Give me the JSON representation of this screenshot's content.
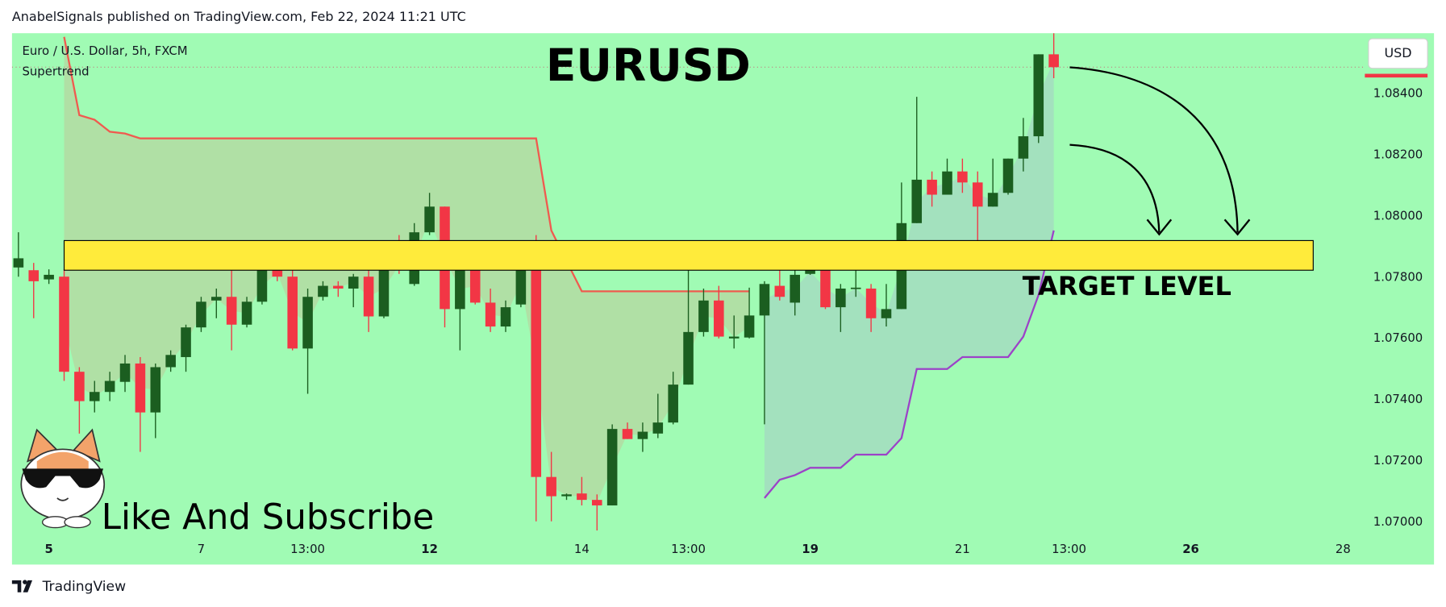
{
  "header": "AnabelSignals published on TradingView.com, Feb 22, 2024 11:21 UTC",
  "footer": "TradingView",
  "chart_data": {
    "type": "candlestick",
    "title": "EURUSD",
    "symbol": "Euro / U.S. Dollar, 5h, FXCM",
    "indicator": "Supertrend",
    "currency": "USD",
    "annotations": [
      "TARGET LEVEL",
      "Like And Subscribe"
    ],
    "up_color": "#1b5e20",
    "down_color": "#f23645",
    "open": [
      1.07833,
      1.07824,
      1.07794,
      1.07803,
      1.07492,
      1.07396,
      1.07426,
      1.07459,
      1.07519,
      1.07359,
      1.07507,
      1.0754,
      1.07637,
      1.07725,
      1.07737,
      1.07646,
      1.07721,
      1.07827,
      1.07803,
      1.07568,
      1.07737,
      1.07773,
      1.07764,
      1.07803,
      1.07673,
      1.07854,
      1.07779,
      1.07948,
      1.08032,
      1.07697,
      1.07827,
      1.07718,
      1.0764,
      1.07712,
      1.07854,
      1.07148,
      1.07085,
      1.07094,
      1.07073,
      1.07055,
      1.07305,
      1.07272,
      1.0729,
      1.07326,
      1.0745,
      1.07622,
      1.07725,
      1.07601,
      1.07604,
      1.07676,
      1.07773,
      1.07718,
      1.07812,
      1.07827,
      1.07703,
      1.07764,
      1.07764,
      1.07667,
      1.07697,
      1.07978,
      1.0812,
      1.08071,
      1.08147,
      1.08111,
      1.08032,
      1.08077,
      1.08189,
      1.08262,
      1.0853
    ],
    "high": [
      1.07948,
      1.07848,
      1.07827,
      1.07827,
      1.07507,
      1.07462,
      1.07492,
      1.07547,
      1.0754,
      1.07519,
      1.07562,
      1.07646,
      1.07737,
      1.07764,
      1.07839,
      1.07737,
      1.07833,
      1.07899,
      1.07854,
      1.07764,
      1.07788,
      1.07788,
      1.07812,
      1.07848,
      1.07899,
      1.07939,
      1.07978,
      1.08077,
      1.08032,
      1.07863,
      1.07854,
      1.07764,
      1.07725,
      1.07863,
      1.07939,
      1.0723,
      1.07094,
      1.07148,
      1.07091,
      1.0732,
      1.07326,
      1.07326,
      1.0742,
      1.07492,
      1.07848,
      1.07764,
      1.07773,
      1.07676,
      1.07767,
      1.07788,
      1.07899,
      1.07899,
      1.07899,
      1.07899,
      1.07779,
      1.07833,
      1.07779,
      1.07779,
      1.08111,
      1.08391,
      1.08147,
      1.08189,
      1.08189,
      1.08147,
      1.08189,
      1.08189,
      1.08322,
      1.0853,
      1.08602
    ],
    "low": [
      1.07803,
      1.07667,
      1.07779,
      1.07462,
      1.0729,
      1.07359,
      1.07396,
      1.07426,
      1.0723,
      1.07275,
      1.07492,
      1.07492,
      1.07622,
      1.07667,
      1.07562,
      1.07637,
      1.07712,
      1.07788,
      1.07562,
      1.0742,
      1.07725,
      1.07737,
      1.07703,
      1.07622,
      1.07667,
      1.07812,
      1.07773,
      1.07939,
      1.07637,
      1.07562,
      1.07712,
      1.07622,
      1.07622,
      1.07703,
      1.07003,
      1.07003,
      1.07073,
      1.07055,
      1.06973,
      1.07055,
      1.07272,
      1.0723,
      1.07275,
      1.0732,
      1.0745,
      1.07607,
      1.07601,
      1.07568,
      1.07601,
      1.0732,
      1.07725,
      1.07676,
      1.07809,
      1.07697,
      1.07622,
      1.07737,
      1.07622,
      1.0764,
      1.07697,
      1.07978,
      1.08032,
      1.08071,
      1.08077,
      1.07899,
      1.08032,
      1.08071,
      1.08147,
      1.0824,
      1.08452
    ],
    "close": [
      1.07863,
      1.07788,
      1.07809,
      1.07492,
      1.07396,
      1.07426,
      1.07462,
      1.07519,
      1.07359,
      1.07507,
      1.07547,
      1.07637,
      1.07721,
      1.07737,
      1.07646,
      1.07721,
      1.07827,
      1.07803,
      1.07568,
      1.07737,
      1.07773,
      1.07764,
      1.07803,
      1.07673,
      1.07854,
      1.07827,
      1.07948,
      1.08032,
      1.07697,
      1.07827,
      1.07718,
      1.0764,
      1.07703,
      1.07854,
      1.07148,
      1.07085,
      1.07091,
      1.07073,
      1.07055,
      1.07305,
      1.07272,
      1.07296,
      1.07326,
      1.0745,
      1.07622,
      1.07725,
      1.07607,
      1.07607,
      1.07676,
      1.07779,
      1.07737,
      1.07809,
      1.07827,
      1.07703,
      1.07764,
      1.07767,
      1.07667,
      1.07697,
      1.07978,
      1.0812,
      1.08071,
      1.08147,
      1.08111,
      1.08032,
      1.08077,
      1.08189,
      1.08262,
      1.0853,
      1.08488
    ],
    "supertrend_down": {
      "color": "#f05a4f",
      "fill": "#b3dba2",
      "values": [
        null,
        null,
        null,
        1.08587,
        1.08331,
        1.08316,
        1.08277,
        1.08271,
        1.08255,
        1.08255,
        1.08255,
        1.08255,
        1.08255,
        1.08255,
        1.08255,
        1.08255,
        1.08255,
        1.08255,
        1.08255,
        1.08255,
        1.08255,
        1.08255,
        1.08255,
        1.08255,
        1.08255,
        1.08255,
        1.08255,
        1.08255,
        1.08255,
        1.08255,
        1.08255,
        1.08255,
        1.08255,
        1.08255,
        1.08255,
        1.07954,
        1.07854,
        1.07755,
        1.07755,
        1.07755,
        1.07755,
        1.07755,
        1.07755,
        1.07755,
        1.07755,
        1.07755,
        1.07755,
        1.07755,
        1.07755,
        null,
        null,
        null,
        null,
        null,
        null,
        null,
        null,
        null,
        null,
        null,
        null,
        null,
        null,
        null,
        null,
        null,
        null,
        null,
        null
      ]
    },
    "supertrend_up": {
      "color": "#9c42c8",
      "fill": "#a3dcc0",
      "values": [
        null,
        null,
        null,
        null,
        null,
        null,
        null,
        null,
        null,
        null,
        null,
        null,
        null,
        null,
        null,
        null,
        null,
        null,
        null,
        null,
        null,
        null,
        null,
        null,
        null,
        null,
        null,
        null,
        null,
        null,
        null,
        null,
        null,
        null,
        null,
        null,
        null,
        null,
        null,
        null,
        null,
        null,
        null,
        null,
        null,
        null,
        null,
        null,
        null,
        1.07079,
        1.07139,
        1.07154,
        1.07178,
        1.07178,
        1.07178,
        1.07221,
        1.07221,
        1.07221,
        1.07275,
        1.07501,
        1.07501,
        1.07501,
        1.0754,
        1.0754,
        1.0754,
        1.0754,
        1.07607,
        1.07743,
        1.07954
      ]
    },
    "target_zone": {
      "low": 1.07824,
      "high": 1.07921,
      "color": "#ffeb3b"
    },
    "ylim": [
      1.06943,
      1.08599
    ],
    "yticks": [
      {
        "value": 1.07,
        "label": "1.07000"
      },
      {
        "value": 1.072,
        "label": "1.07200"
      },
      {
        "value": 1.074,
        "label": "1.07400"
      },
      {
        "value": 1.076,
        "label": "1.07600"
      },
      {
        "value": 1.078,
        "label": "1.07800"
      },
      {
        "value": 1.08,
        "label": "1.08000"
      },
      {
        "value": 1.082,
        "label": "1.08200"
      },
      {
        "value": 1.084,
        "label": "1.08400"
      }
    ],
    "xticks": [
      {
        "value": 2,
        "label": "5",
        "bold": true
      },
      {
        "value": 12,
        "label": "7"
      },
      {
        "value": 19,
        "label": "13:00"
      },
      {
        "value": 27,
        "label": "12",
        "bold": true
      },
      {
        "value": 37,
        "label": "14"
      },
      {
        "value": 44,
        "label": "13:00"
      },
      {
        "value": 52,
        "label": "19",
        "bold": true
      },
      {
        "value": 62,
        "label": "21"
      },
      {
        "value": 69,
        "label": "13:00"
      },
      {
        "value": 77,
        "label": "26",
        "bold": true
      },
      {
        "value": 87,
        "label": "28"
      }
    ],
    "background": "#a0fbb4"
  }
}
